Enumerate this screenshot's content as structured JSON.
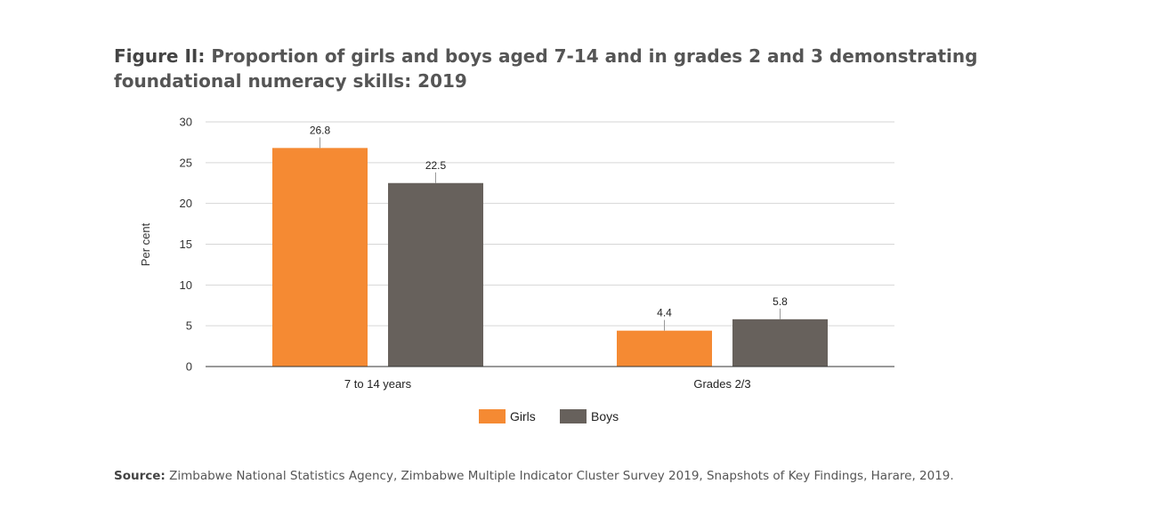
{
  "title": {
    "label": "Figure II:",
    "text": "Proportion of girls and boys aged 7-14 and in grades 2 and 3 demonstrating foundational numeracy skills: 2019"
  },
  "source": {
    "label": "Source:",
    "text": "Zimbabwe National Statistics Agency, Zimbabwe Multiple Indicator Cluster Survey 2019, Snapshots of Key Findings, Harare, 2019."
  },
  "chart_data": {
    "type": "bar",
    "categories": [
      "7 to 14 years",
      "Grades 2/3"
    ],
    "series": [
      {
        "name": "Girls",
        "values": [
          26.8,
          4.4
        ],
        "color": "#f58a33"
      },
      {
        "name": "Boys",
        "values": [
          22.5,
          5.8
        ],
        "color": "#67615c"
      }
    ],
    "ylabel": "Per cent",
    "ylim": [
      0,
      30
    ],
    "yticks": [
      0,
      5,
      10,
      15,
      20,
      25,
      30
    ],
    "grid": true,
    "legend": "bottom-center",
    "data_labels": true
  }
}
